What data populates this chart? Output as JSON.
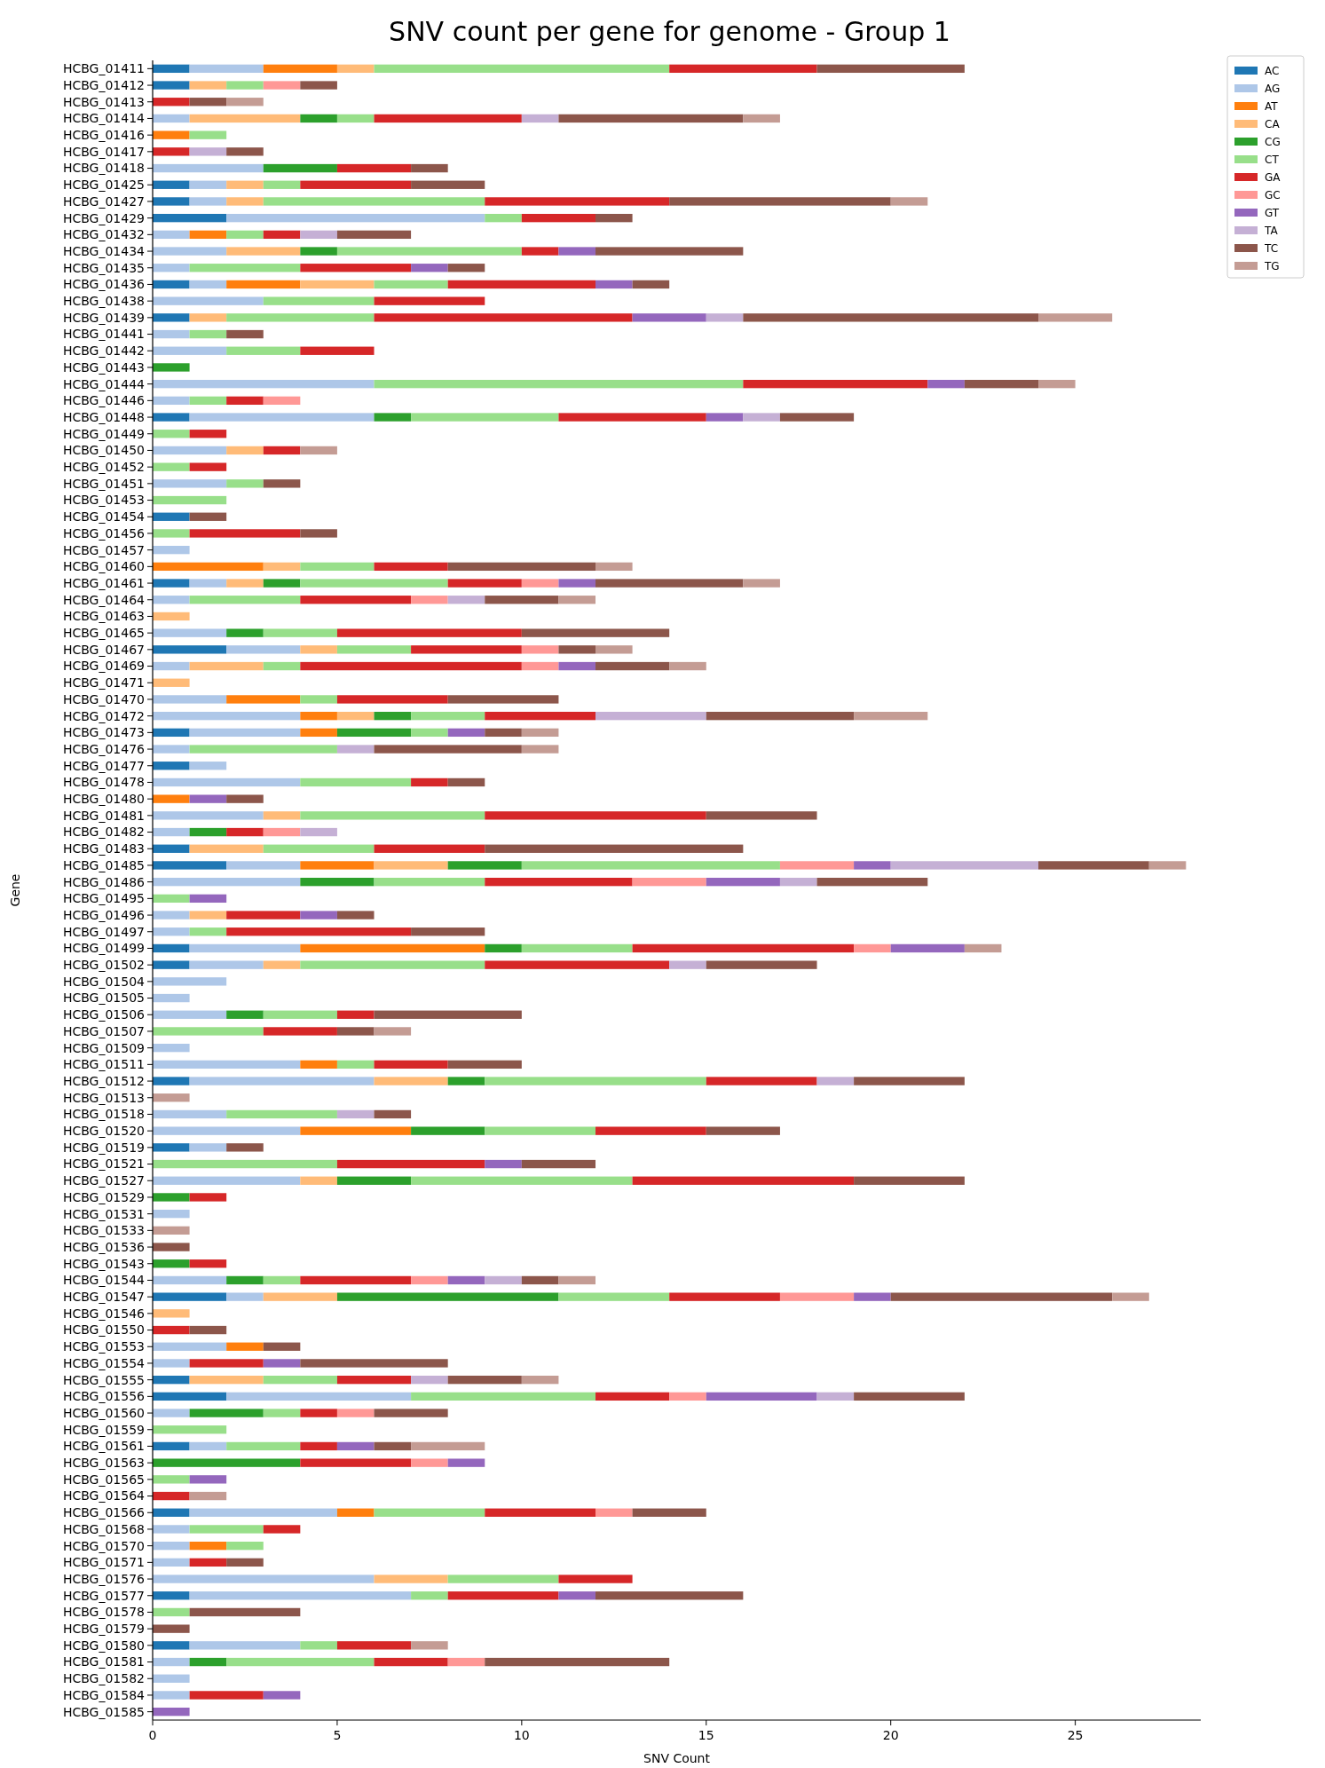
{
  "chart_data": {
    "type": "bar",
    "orientation": "horizontal",
    "stacked": true,
    "title": "SNV count per gene for genome - Group 1",
    "xlabel": "SNV Count",
    "ylabel": "Gene",
    "legend": "top right",
    "grid": false,
    "xlim": [
      0,
      28.4
    ],
    "xticks": [
      0,
      5,
      10,
      15,
      20,
      25
    ],
    "categories": [
      "HCBG_01411",
      "HCBG_01412",
      "HCBG_01413",
      "HCBG_01414",
      "HCBG_01416",
      "HCBG_01417",
      "HCBG_01418",
      "HCBG_01425",
      "HCBG_01427",
      "HCBG_01429",
      "HCBG_01432",
      "HCBG_01434",
      "HCBG_01435",
      "HCBG_01436",
      "HCBG_01438",
      "HCBG_01439",
      "HCBG_01441",
      "HCBG_01442",
      "HCBG_01443",
      "HCBG_01444",
      "HCBG_01446",
      "HCBG_01448",
      "HCBG_01449",
      "HCBG_01450",
      "HCBG_01452",
      "HCBG_01451",
      "HCBG_01453",
      "HCBG_01454",
      "HCBG_01456",
      "HCBG_01457",
      "HCBG_01460",
      "HCBG_01461",
      "HCBG_01464",
      "HCBG_01463",
      "HCBG_01465",
      "HCBG_01467",
      "HCBG_01469",
      "HCBG_01471",
      "HCBG_01470",
      "HCBG_01472",
      "HCBG_01473",
      "HCBG_01476",
      "HCBG_01477",
      "HCBG_01478",
      "HCBG_01480",
      "HCBG_01481",
      "HCBG_01482",
      "HCBG_01483",
      "HCBG_01485",
      "HCBG_01486",
      "HCBG_01495",
      "HCBG_01496",
      "HCBG_01497",
      "HCBG_01499",
      "HCBG_01502",
      "HCBG_01504",
      "HCBG_01505",
      "HCBG_01506",
      "HCBG_01507",
      "HCBG_01509",
      "HCBG_01511",
      "HCBG_01512",
      "HCBG_01513",
      "HCBG_01518",
      "HCBG_01520",
      "HCBG_01519",
      "HCBG_01521",
      "HCBG_01527",
      "HCBG_01529",
      "HCBG_01531",
      "HCBG_01533",
      "HCBG_01536",
      "HCBG_01543",
      "HCBG_01544",
      "HCBG_01547",
      "HCBG_01546",
      "HCBG_01550",
      "HCBG_01553",
      "HCBG_01554",
      "HCBG_01555",
      "HCBG_01556",
      "HCBG_01560",
      "HCBG_01559",
      "HCBG_01561",
      "HCBG_01563",
      "HCBG_01565",
      "HCBG_01564",
      "HCBG_01566",
      "HCBG_01568",
      "HCBG_01570",
      "HCBG_01571",
      "HCBG_01576",
      "HCBG_01577",
      "HCBG_01578",
      "HCBG_01579",
      "HCBG_01580",
      "HCBG_01581",
      "HCBG_01582",
      "HCBG_01584",
      "HCBG_01585"
    ],
    "series": [
      {
        "name": "AC",
        "color": "#1f77b4",
        "values": [
          1,
          1,
          0,
          0,
          0,
          0,
          0,
          1,
          1,
          2,
          0,
          0,
          0,
          1,
          0,
          1,
          0,
          0,
          0,
          0,
          0,
          1,
          0,
          0,
          0,
          0,
          0,
          1,
          0,
          0,
          0,
          1,
          0,
          0,
          0,
          2,
          0,
          0,
          0,
          0,
          1,
          0,
          1,
          0,
          0,
          0,
          0,
          1,
          2,
          0,
          0,
          0,
          0,
          1,
          1,
          0,
          0,
          0,
          0,
          0,
          0,
          1,
          0,
          0,
          0,
          1,
          0,
          0,
          0,
          0,
          0,
          0,
          0,
          0,
          2,
          0,
          0,
          0,
          0,
          1,
          2,
          0,
          0,
          1,
          0,
          0,
          0,
          1,
          0,
          0,
          0,
          0,
          1,
          0,
          0,
          1,
          0,
          0,
          0,
          0
        ]
      },
      {
        "name": "AG",
        "color": "#aec7e8",
        "values": [
          2,
          0,
          0,
          1,
          0,
          0,
          3,
          1,
          1,
          7,
          1,
          2,
          1,
          1,
          3,
          0,
          1,
          2,
          0,
          6,
          1,
          5,
          0,
          2,
          0,
          2,
          0,
          0,
          0,
          1,
          0,
          1,
          1,
          0,
          2,
          2,
          1,
          0,
          2,
          4,
          3,
          1,
          1,
          4,
          0,
          3,
          1,
          0,
          2,
          4,
          0,
          1,
          1,
          3,
          2,
          2,
          1,
          2,
          0,
          1,
          4,
          5,
          0,
          2,
          4,
          1,
          0,
          4,
          0,
          1,
          0,
          0,
          0,
          2,
          1,
          0,
          0,
          2,
          1,
          0,
          5,
          1,
          0,
          1,
          0,
          0,
          0,
          4,
          1,
          1,
          1,
          6,
          6,
          0,
          0,
          3,
          1,
          1,
          1,
          0
        ]
      },
      {
        "name": "AT",
        "color": "#ff7f0e",
        "values": [
          2,
          0,
          0,
          0,
          1,
          0,
          0,
          0,
          0,
          0,
          1,
          0,
          0,
          2,
          0,
          0,
          0,
          0,
          0,
          0,
          0,
          0,
          0,
          0,
          0,
          0,
          0,
          0,
          0,
          0,
          3,
          0,
          0,
          0,
          0,
          0,
          0,
          0,
          2,
          1,
          1,
          0,
          0,
          0,
          1,
          0,
          0,
          0,
          2,
          0,
          0,
          0,
          0,
          5,
          0,
          0,
          0,
          0,
          0,
          0,
          1,
          0,
          0,
          0,
          3,
          0,
          0,
          0,
          0,
          0,
          0,
          0,
          0,
          0,
          0,
          0,
          0,
          1,
          0,
          0,
          0,
          0,
          0,
          0,
          0,
          0,
          0,
          1,
          0,
          1,
          0,
          0,
          0,
          0,
          0,
          0,
          0,
          0,
          0,
          0
        ]
      },
      {
        "name": "CA",
        "color": "#ffbb78",
        "values": [
          1,
          1,
          0,
          3,
          0,
          0,
          0,
          1,
          1,
          0,
          0,
          2,
          0,
          2,
          0,
          1,
          0,
          0,
          0,
          0,
          0,
          0,
          0,
          1,
          0,
          0,
          0,
          0,
          0,
          0,
          1,
          1,
          0,
          1,
          0,
          1,
          2,
          1,
          0,
          1,
          0,
          0,
          0,
          0,
          0,
          1,
          0,
          2,
          2,
          0,
          0,
          1,
          0,
          0,
          1,
          0,
          0,
          0,
          0,
          0,
          0,
          2,
          0,
          0,
          0,
          0,
          0,
          1,
          0,
          0,
          0,
          0,
          0,
          0,
          2,
          1,
          0,
          0,
          0,
          2,
          0,
          0,
          0,
          0,
          0,
          0,
          0,
          0,
          0,
          0,
          0,
          2,
          0,
          0,
          0,
          0,
          0,
          0,
          0,
          0
        ]
      },
      {
        "name": "CG",
        "color": "#2ca02c",
        "values": [
          0,
          0,
          0,
          1,
          0,
          0,
          2,
          0,
          0,
          0,
          0,
          1,
          0,
          0,
          0,
          0,
          0,
          0,
          1,
          0,
          0,
          1,
          0,
          0,
          0,
          0,
          0,
          0,
          0,
          0,
          0,
          1,
          0,
          0,
          1,
          0,
          0,
          0,
          0,
          1,
          2,
          0,
          0,
          0,
          0,
          0,
          1,
          0,
          2,
          2,
          0,
          0,
          0,
          1,
          0,
          0,
          0,
          1,
          0,
          0,
          0,
          1,
          0,
          0,
          2,
          0,
          0,
          2,
          1,
          0,
          0,
          0,
          1,
          1,
          6,
          0,
          0,
          0,
          0,
          0,
          0,
          2,
          0,
          0,
          4,
          0,
          0,
          0,
          0,
          0,
          0,
          0,
          0,
          0,
          0,
          0,
          1,
          0,
          0,
          0
        ]
      },
      {
        "name": "CT",
        "color": "#98df8a",
        "values": [
          8,
          1,
          0,
          1,
          1,
          0,
          0,
          1,
          6,
          1,
          1,
          5,
          3,
          2,
          3,
          4,
          1,
          2,
          0,
          10,
          1,
          4,
          1,
          0,
          1,
          1,
          2,
          0,
          1,
          0,
          2,
          4,
          3,
          0,
          2,
          2,
          1,
          0,
          1,
          2,
          1,
          4,
          0,
          3,
          0,
          5,
          0,
          3,
          7,
          3,
          1,
          0,
          1,
          3,
          5,
          0,
          0,
          2,
          3,
          0,
          1,
          6,
          0,
          3,
          3,
          0,
          5,
          6,
          0,
          0,
          0,
          0,
          0,
          1,
          3,
          0,
          0,
          0,
          0,
          2,
          5,
          1,
          2,
          2,
          0,
          1,
          0,
          3,
          2,
          1,
          0,
          3,
          1,
          1,
          0,
          1,
          4,
          0,
          0,
          0
        ]
      },
      {
        "name": "GA",
        "color": "#d62728",
        "values": [
          4,
          0,
          1,
          4,
          0,
          1,
          2,
          3,
          5,
          2,
          1,
          1,
          3,
          4,
          3,
          7,
          0,
          2,
          0,
          5,
          1,
          4,
          1,
          1,
          1,
          0,
          0,
          0,
          3,
          0,
          2,
          2,
          3,
          0,
          5,
          3,
          6,
          0,
          3,
          3,
          0,
          0,
          0,
          1,
          0,
          6,
          1,
          3,
          0,
          4,
          0,
          2,
          5,
          6,
          5,
          0,
          0,
          1,
          2,
          0,
          2,
          3,
          0,
          0,
          3,
          0,
          4,
          6,
          1,
          0,
          0,
          0,
          1,
          3,
          3,
          0,
          1,
          0,
          2,
          2,
          2,
          1,
          0,
          1,
          3,
          0,
          1,
          3,
          1,
          0,
          1,
          2,
          3,
          0,
          0,
          2,
          2,
          0,
          2,
          0
        ]
      },
      {
        "name": "GC",
        "color": "#ff9896",
        "values": [
          0,
          1,
          0,
          0,
          0,
          0,
          0,
          0,
          0,
          0,
          0,
          0,
          0,
          0,
          0,
          0,
          0,
          0,
          0,
          0,
          1,
          0,
          0,
          0,
          0,
          0,
          0,
          0,
          0,
          0,
          0,
          1,
          1,
          0,
          0,
          1,
          1,
          0,
          0,
          0,
          0,
          0,
          0,
          0,
          0,
          0,
          1,
          0,
          2,
          2,
          0,
          0,
          0,
          1,
          0,
          0,
          0,
          0,
          0,
          0,
          0,
          0,
          0,
          0,
          0,
          0,
          0,
          0,
          0,
          0,
          0,
          0,
          0,
          1,
          2,
          0,
          0,
          0,
          0,
          0,
          1,
          1,
          0,
          0,
          1,
          0,
          0,
          1,
          0,
          0,
          0,
          0,
          0,
          0,
          0,
          0,
          1,
          0,
          0,
          0
        ]
      },
      {
        "name": "GT",
        "color": "#9467bd",
        "values": [
          0,
          0,
          0,
          0,
          0,
          0,
          0,
          0,
          0,
          0,
          0,
          1,
          1,
          1,
          0,
          2,
          0,
          0,
          0,
          1,
          0,
          1,
          0,
          0,
          0,
          0,
          0,
          0,
          0,
          0,
          0,
          1,
          0,
          0,
          0,
          0,
          1,
          0,
          0,
          0,
          1,
          0,
          0,
          0,
          1,
          0,
          0,
          0,
          1,
          2,
          1,
          1,
          0,
          2,
          0,
          0,
          0,
          0,
          0,
          0,
          0,
          0,
          0,
          0,
          0,
          0,
          1,
          0,
          0,
          0,
          0,
          0,
          0,
          1,
          1,
          0,
          0,
          0,
          1,
          0,
          3,
          0,
          0,
          1,
          1,
          1,
          0,
          0,
          0,
          0,
          0,
          0,
          1,
          0,
          0,
          0,
          0,
          0,
          1,
          1
        ]
      },
      {
        "name": "TA",
        "color": "#c5b0d5",
        "values": [
          0,
          0,
          0,
          1,
          0,
          1,
          0,
          0,
          0,
          0,
          1,
          0,
          0,
          0,
          0,
          1,
          0,
          0,
          0,
          0,
          0,
          1,
          0,
          0,
          0,
          0,
          0,
          0,
          0,
          0,
          0,
          0,
          1,
          0,
          0,
          0,
          0,
          0,
          0,
          3,
          0,
          1,
          0,
          0,
          0,
          0,
          1,
          0,
          4,
          1,
          0,
          0,
          0,
          0,
          1,
          0,
          0,
          0,
          0,
          0,
          0,
          1,
          0,
          1,
          0,
          0,
          0,
          0,
          0,
          0,
          0,
          0,
          0,
          1,
          0,
          0,
          0,
          0,
          0,
          1,
          1,
          0,
          0,
          0,
          0,
          0,
          0,
          0,
          0,
          0,
          0,
          0,
          0,
          0,
          0,
          0,
          0,
          0,
          0,
          0
        ]
      },
      {
        "name": "TC",
        "color": "#8c564b",
        "values": [
          4,
          1,
          1,
          5,
          0,
          1,
          1,
          2,
          6,
          1,
          2,
          4,
          1,
          1,
          0,
          8,
          1,
          0,
          0,
          2,
          0,
          2,
          0,
          0,
          0,
          1,
          0,
          1,
          1,
          0,
          4,
          4,
          2,
          0,
          4,
          1,
          2,
          0,
          3,
          4,
          1,
          4,
          0,
          1,
          1,
          3,
          0,
          7,
          3,
          3,
          0,
          1,
          2,
          0,
          3,
          0,
          0,
          4,
          1,
          0,
          2,
          3,
          0,
          1,
          2,
          1,
          2,
          3,
          0,
          0,
          0,
          1,
          0,
          1,
          6,
          0,
          1,
          1,
          4,
          2,
          3,
          2,
          0,
          1,
          0,
          0,
          0,
          2,
          0,
          0,
          1,
          0,
          4,
          3,
          1,
          0,
          5,
          0,
          0,
          0
        ]
      },
      {
        "name": "TG",
        "color": "#c49c94",
        "values": [
          0,
          0,
          1,
          1,
          0,
          0,
          0,
          0,
          1,
          0,
          0,
          0,
          0,
          0,
          0,
          2,
          0,
          0,
          0,
          1,
          0,
          0,
          0,
          1,
          0,
          0,
          0,
          0,
          0,
          0,
          1,
          1,
          1,
          0,
          0,
          1,
          1,
          0,
          0,
          2,
          1,
          1,
          0,
          0,
          0,
          0,
          0,
          0,
          1,
          0,
          0,
          0,
          0,
          1,
          0,
          0,
          0,
          0,
          1,
          0,
          0,
          0,
          1,
          0,
          0,
          0,
          0,
          0,
          0,
          0,
          1,
          0,
          0,
          1,
          1,
          0,
          0,
          0,
          0,
          1,
          0,
          0,
          0,
          2,
          0,
          0,
          1,
          0,
          0,
          0,
          0,
          0,
          0,
          0,
          0,
          1,
          0,
          0,
          0,
          0
        ]
      }
    ]
  }
}
